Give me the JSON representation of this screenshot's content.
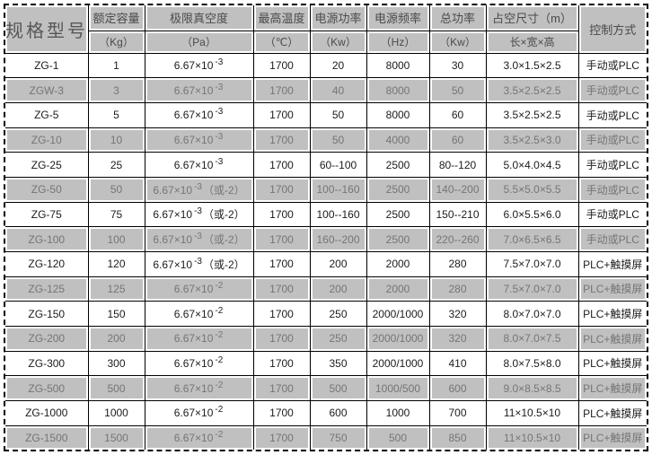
{
  "colors": {
    "row_shade": "#c0c0c0",
    "border": "#000000",
    "white_row_text": "#1b1b1b",
    "shade_row_text": "#757575"
  },
  "table": {
    "header": {
      "model_label": "规格型号",
      "control_label": "控制方式",
      "columns": [
        {
          "title": "额定容量",
          "unit": "（Kg）"
        },
        {
          "title": "极限真空度",
          "unit": "（Pa）"
        },
        {
          "title": "最高温度",
          "unit": "（℃）"
        },
        {
          "title": "电源功率",
          "unit": "（Kw）"
        },
        {
          "title": "电源频率",
          "unit": "（Hz）"
        },
        {
          "title": "总功率",
          "unit": "（Kw）"
        },
        {
          "title": "占空尺寸（m）",
          "unit": "长×宽×高"
        }
      ]
    },
    "rows": [
      {
        "model": "ZG-1",
        "capacity": "1",
        "vacuum_base": "6.67×10",
        "vacuum_exp": "-3",
        "vacuum_note": "",
        "temp": "1700",
        "power": "20",
        "freq": "8000",
        "total": "30",
        "size": "3.0×1.5×2.5",
        "control": "手动或PLC"
      },
      {
        "model": "ZGW-3",
        "capacity": "3",
        "vacuum_base": "6.67×10",
        "vacuum_exp": "-3",
        "vacuum_note": "",
        "temp": "1700",
        "power": "40",
        "freq": "8000",
        "total": "50",
        "size": "3.5×2.5×2.5",
        "control": "手动或PLC"
      },
      {
        "model": "ZG-5",
        "capacity": "5",
        "vacuum_base": "6.67×10",
        "vacuum_exp": "-3",
        "vacuum_note": "",
        "temp": "1700",
        "power": "50",
        "freq": "8000",
        "total": "60",
        "size": "3.5×2.5×2.5",
        "control": "手动或PLC"
      },
      {
        "model": "ZG-10",
        "capacity": "10",
        "vacuum_base": "6.67×10",
        "vacuum_exp": "-3",
        "vacuum_note": "",
        "temp": "1700",
        "power": "50",
        "freq": "4000",
        "total": "60",
        "size": "3.5×2.5×3.0",
        "control": "手动或PLC"
      },
      {
        "model": "ZG-25",
        "capacity": "25",
        "vacuum_base": "6.67×10",
        "vacuum_exp": "-3",
        "vacuum_note": "",
        "temp": "1700",
        "power": "60--100",
        "freq": "2500",
        "total": "80--120",
        "size": "5.0×4.0×4.5",
        "control": "手动或PLC"
      },
      {
        "model": "ZG-50",
        "capacity": "50",
        "vacuum_base": "6.67×10",
        "vacuum_exp": "-3",
        "vacuum_note": "（或-2）",
        "temp": "1700",
        "power": "100--160",
        "freq": "2500",
        "total": "140--200",
        "size": "5.5×5.0×5.5",
        "control": "手动或PLC"
      },
      {
        "model": "ZG-75",
        "capacity": "75",
        "vacuum_base": "6.67×10",
        "vacuum_exp": "-3",
        "vacuum_note": "（或-2）",
        "temp": "1700",
        "power": "100--160",
        "freq": "2500",
        "total": "150--210",
        "size": "6.0×5.5×6.0",
        "control": "手动或PLC"
      },
      {
        "model": "ZG-100",
        "capacity": "100",
        "vacuum_base": "6.67×10",
        "vacuum_exp": "-3",
        "vacuum_note": "（或-2）",
        "temp": "1700",
        "power": "160--200",
        "freq": "2500",
        "total": "220--260",
        "size": "7.0×6.5×6.5",
        "control": "手动或PLC"
      },
      {
        "model": "ZG-120",
        "capacity": "120",
        "vacuum_base": "6.67×10",
        "vacuum_exp": "-3",
        "vacuum_note": "（或-2）",
        "temp": "1700",
        "power": "200",
        "freq": "2000",
        "total": "280",
        "size": "7.5×7.0×7.0",
        "control": "PLC+触摸屏"
      },
      {
        "model": "ZG-125",
        "capacity": "125",
        "vacuum_base": "6.67×10",
        "vacuum_exp": "-2",
        "vacuum_note": "",
        "temp": "1700",
        "power": "200",
        "freq": "2000",
        "total": "280",
        "size": "7.5×7.0×7.0",
        "control": "PLC+触摸屏"
      },
      {
        "model": "ZG-150",
        "capacity": "150",
        "vacuum_base": "6.67×10",
        "vacuum_exp": "-2",
        "vacuum_note": "",
        "temp": "1700",
        "power": "250",
        "freq": "2000/1000",
        "total": "320",
        "size": "8.0×7.0×7.0",
        "control": "PLC+触摸屏"
      },
      {
        "model": "ZG-200",
        "capacity": "200",
        "vacuum_base": "6.67×10",
        "vacuum_exp": "-2",
        "vacuum_note": "",
        "temp": "1700",
        "power": "250",
        "freq": "2000/1000",
        "total": "320",
        "size": "8.0×7.0×7.5",
        "control": "PLC+触摸屏"
      },
      {
        "model": "ZG-300",
        "capacity": "300",
        "vacuum_base": "6.67×10",
        "vacuum_exp": "-2",
        "vacuum_note": "",
        "temp": "1700",
        "power": "350",
        "freq": "2000/1000",
        "total": "410",
        "size": "8.0×7.5×8.0",
        "control": "PLC+触摸屏"
      },
      {
        "model": "ZG-500",
        "capacity": "500",
        "vacuum_base": "6.67×10",
        "vacuum_exp": "-2",
        "vacuum_note": "",
        "temp": "1700",
        "power": "500",
        "freq": "1000/500",
        "total": "600",
        "size": "9.0×8.5×8.5",
        "control": "PLC+触摸屏"
      },
      {
        "model": "ZG-1000",
        "capacity": "1000",
        "vacuum_base": "6.67×10",
        "vacuum_exp": "-2",
        "vacuum_note": "",
        "temp": "1700",
        "power": "600",
        "freq": "1000",
        "total": "700",
        "size": "11×10.5×10",
        "control": "PLC+触摸屏"
      },
      {
        "model": "ZG-1500",
        "capacity": "1500",
        "vacuum_base": "6.67×10",
        "vacuum_exp": "-2",
        "vacuum_note": "",
        "temp": "1700",
        "power": "750",
        "freq": "500",
        "total": "850",
        "size": "11×10.5×10",
        "control": "PLC+触摸屏"
      }
    ]
  }
}
